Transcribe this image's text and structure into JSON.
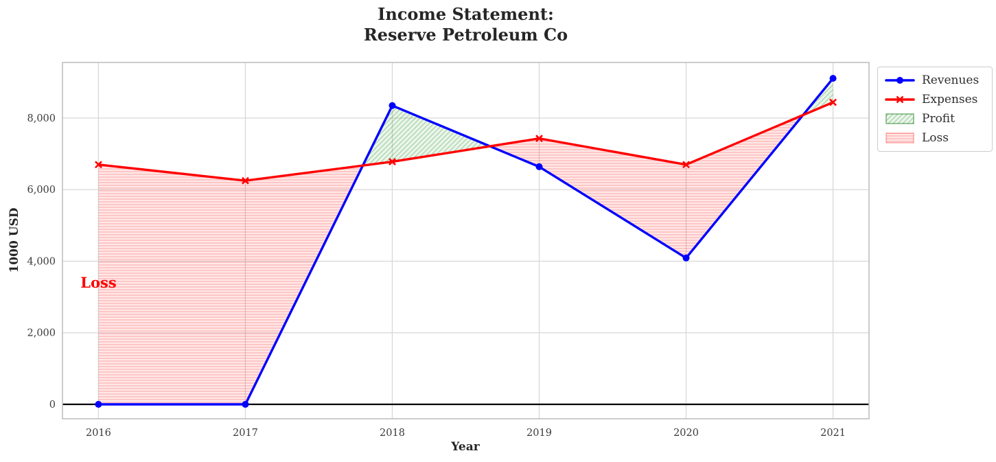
{
  "title": "Income Statement:\nReserve Petroleum Co",
  "legend": {
    "items": [
      {
        "label": "Revenues",
        "swatch": "line",
        "marker": "circle",
        "color": "#0000ff"
      },
      {
        "label": "Expenses",
        "swatch": "line",
        "marker": "x",
        "color": "#ff0000"
      },
      {
        "label": "Profit",
        "swatch": "patch",
        "pattern": "profitHatch",
        "edge": "rgba(0,110,0,0.55)"
      },
      {
        "label": "Loss",
        "swatch": "patch",
        "pattern": "lossHatch",
        "edge": "rgba(255,0,0,0.35)"
      }
    ]
  },
  "chart_data": {
    "type": "line",
    "title": "Income Statement:\nReserve Petroleum Co",
    "xlabel": "Year",
    "ylabel": "1000 USD",
    "x": [
      2016,
      2017,
      2018,
      2019,
      2020,
      2021
    ],
    "series": [
      {
        "name": "Revenues",
        "color": "#0000ff",
        "marker": "circle",
        "values": [
          0,
          0,
          8350,
          6640,
          4090,
          9110
        ]
      },
      {
        "name": "Expenses",
        "color": "#ff0000",
        "marker": "x",
        "values": [
          6700,
          6250,
          6780,
          7430,
          6700,
          8440
        ]
      }
    ],
    "fills": [
      {
        "name": "Profit",
        "rule": "Revenues >= Expenses",
        "hatch": "diagonal",
        "color": "#008000"
      },
      {
        "name": "Loss",
        "rule": "Expenses >= Revenues",
        "hatch": "horizontal",
        "color": "#ff0000"
      }
    ],
    "annotation": {
      "text": "Loss",
      "x": 2016,
      "y": 3400,
      "color": "#ff0000"
    },
    "xlim": [
      2015.755,
      2021.245
    ],
    "ylim": [
      -403,
      9554
    ],
    "xticks": {
      "values": [
        2016,
        2017,
        2018,
        2019,
        2020,
        2021
      ],
      "labels": [
        "2016",
        "2017",
        "2018",
        "2019",
        "2020",
        "2021"
      ]
    },
    "yticks": {
      "values": [
        0,
        2000,
        4000,
        6000,
        8000
      ],
      "labels": [
        "0",
        "2,000",
        "4,000",
        "6,000",
        "8,000"
      ]
    },
    "grid": true,
    "zero_line": true,
    "legend_position": "outside upper right"
  },
  "colors": {
    "revenues": "#0000ff",
    "expenses": "#ff0000",
    "grid": "#d8d8d8",
    "spine": "#bfbfbf",
    "text": "#262626",
    "tick_text": "#3a3a3a",
    "zero_line": "#000000",
    "profit_fill_bg": "rgba(0,128,0,0.08)",
    "profit_fill_stripe": "rgba(0,128,0,0.26)",
    "loss_fill_bg": "rgba(255,0,0,0.09)",
    "loss_fill_stripe": "rgba(255,0,0,0.16)"
  }
}
